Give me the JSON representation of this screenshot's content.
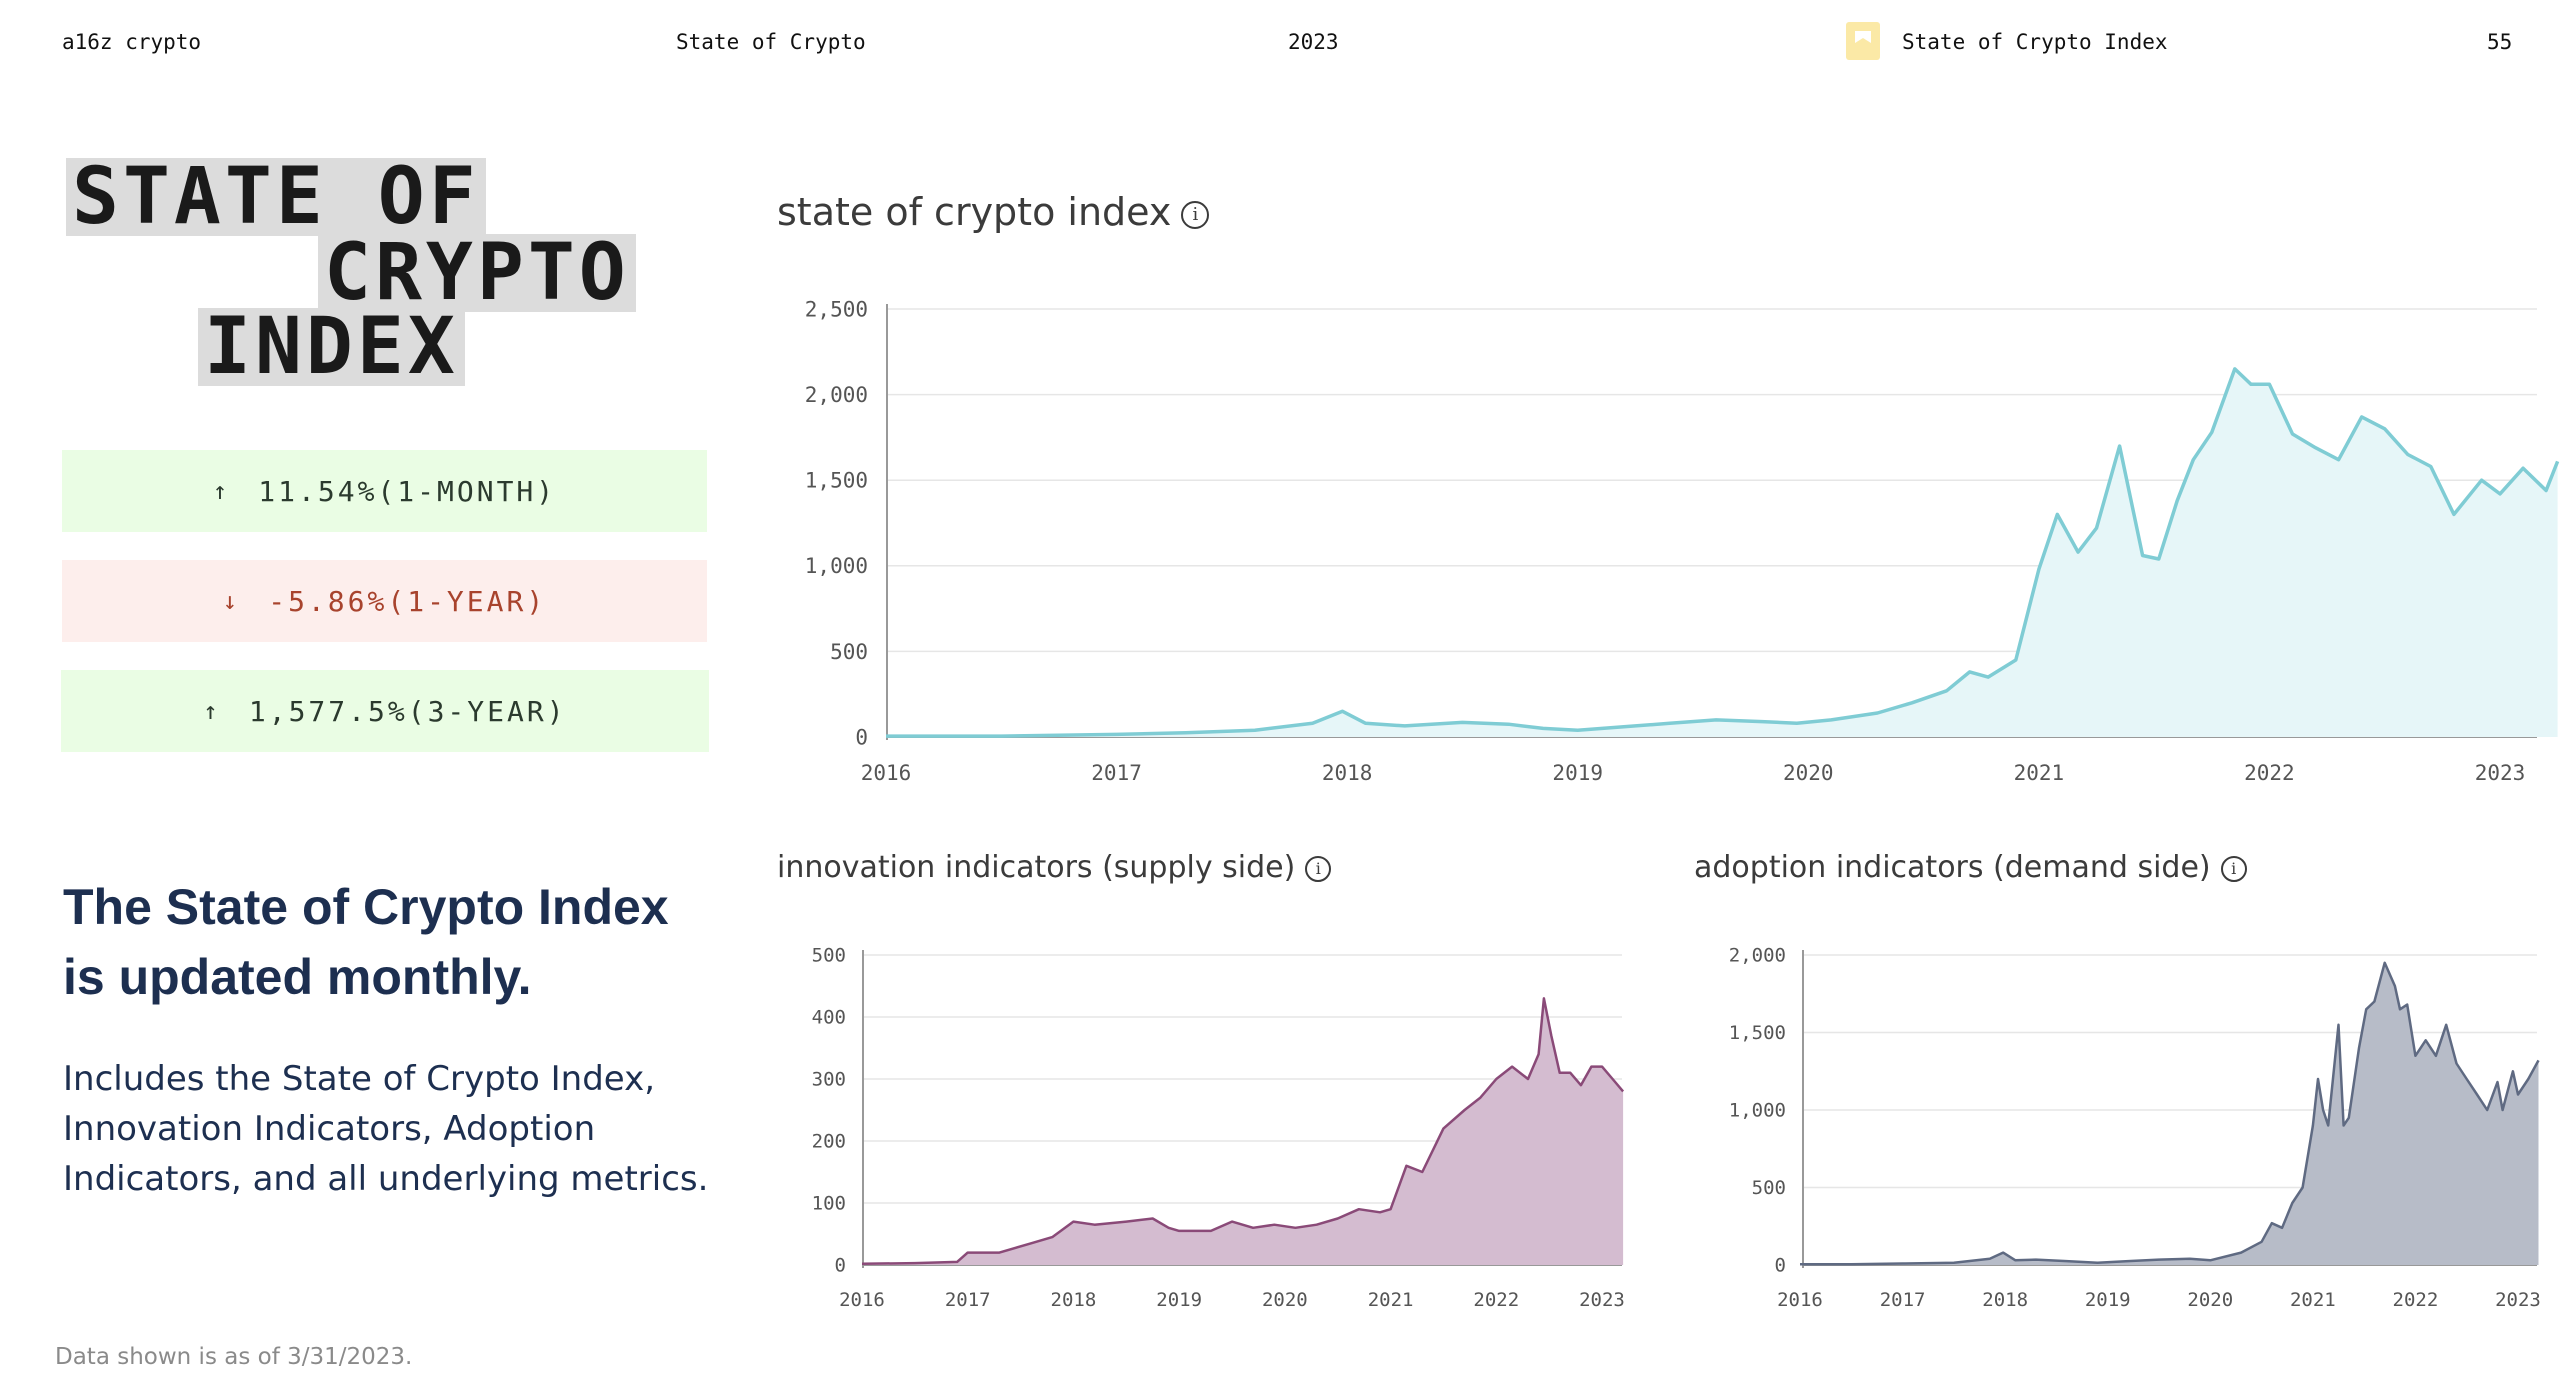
{
  "header": {
    "brand": "a16z crypto",
    "report": "State of Crypto",
    "year": "2023",
    "section": "State of Crypto Index",
    "page": "55"
  },
  "title": {
    "line1": "STATE OF",
    "line2": "CRYPTO",
    "line3": "INDEX"
  },
  "stats": [
    {
      "direction": "up",
      "value": "11.54%(1-MONTH)"
    },
    {
      "direction": "down",
      "value": "-5.86%(1-YEAR)"
    },
    {
      "direction": "up",
      "value": "1,577.5%(3-YEAR)"
    }
  ],
  "headline": "The State of Crypto Index is updated monthly.",
  "body": "Includes the State of Crypto Index, Innovation Indicators, Adoption Indicators, and all underlying metrics.",
  "footnote": "Data shown is as of 3/31/2023.",
  "colors": {
    "index_line": "#7fccd4",
    "index_fill": "#e6f6f8",
    "supply_line": "#8a4a78",
    "supply_fill": "#d4bcd0",
    "demand_line": "#5f6a82",
    "demand_fill": "#b7bcc8",
    "up_bg": "#eafde4",
    "down_bg": "#fdeeec",
    "down_text": "#a8432d"
  },
  "chart_data": [
    {
      "type": "area",
      "title": "state of crypto index",
      "ylim": [
        0,
        2500
      ],
      "yticks": [
        0,
        500,
        1000,
        1500,
        2000,
        2500
      ],
      "xticks": [
        "2016",
        "2017",
        "2018",
        "2019",
        "2020",
        "2021",
        "2022",
        "2023"
      ],
      "grid": true,
      "series": [
        {
          "x": [
            2016.0,
            2016.5,
            2017.0,
            2017.3,
            2017.6,
            2017.85,
            2017.98,
            2018.08,
            2018.25,
            2018.5,
            2018.7,
            2018.85,
            2019.0,
            2019.2,
            2019.4,
            2019.6,
            2019.8,
            2019.95,
            2020.1,
            2020.3,
            2020.45,
            2020.6,
            2020.7,
            2020.78,
            2020.9,
            2021.0,
            2021.08,
            2021.17,
            2021.25,
            2021.35,
            2021.45,
            2021.52,
            2021.6,
            2021.67,
            2021.75,
            2021.85,
            2021.92,
            2022.0,
            2022.1,
            2022.2,
            2022.3,
            2022.4,
            2022.5,
            2022.6,
            2022.7,
            2022.8,
            2022.92,
            2023.0,
            2023.1,
            2023.2,
            2023.25
          ],
          "y": [
            5,
            5,
            15,
            25,
            40,
            80,
            150,
            80,
            65,
            85,
            75,
            50,
            40,
            60,
            80,
            100,
            90,
            80,
            100,
            140,
            200,
            270,
            380,
            350,
            450,
            980,
            1300,
            1080,
            1220,
            1700,
            1060,
            1040,
            1380,
            1620,
            1780,
            2150,
            2060,
            2060,
            1770,
            1690,
            1620,
            1870,
            1800,
            1650,
            1580,
            1300,
            1500,
            1420,
            1570,
            1440,
            1610
          ]
        }
      ]
    },
    {
      "type": "area",
      "title": "innovation indicators (supply side)",
      "ylim": [
        0,
        500
      ],
      "yticks": [
        0,
        100,
        200,
        300,
        400,
        500
      ],
      "xticks": [
        "2016",
        "2017",
        "2018",
        "2019",
        "2020",
        "2021",
        "2022",
        "2023"
      ],
      "grid": true,
      "series": [
        {
          "x": [
            2016.0,
            2016.5,
            2016.9,
            2017.0,
            2017.3,
            2017.6,
            2017.8,
            2018.0,
            2018.2,
            2018.5,
            2018.75,
            2018.9,
            2019.0,
            2019.3,
            2019.5,
            2019.7,
            2019.9,
            2020.1,
            2020.3,
            2020.5,
            2020.7,
            2020.9,
            2021.0,
            2021.15,
            2021.3,
            2021.5,
            2021.7,
            2021.85,
            2022.0,
            2022.15,
            2022.3,
            2022.4,
            2022.45,
            2022.52,
            2022.6,
            2022.7,
            2022.8,
            2022.9,
            2023.0,
            2023.1,
            2023.2
          ],
          "y": [
            2,
            3,
            5,
            20,
            20,
            35,
            45,
            70,
            65,
            70,
            75,
            60,
            55,
            55,
            70,
            60,
            65,
            60,
            65,
            75,
            90,
            85,
            90,
            160,
            150,
            220,
            250,
            270,
            300,
            320,
            300,
            340,
            430,
            370,
            310,
            310,
            290,
            320,
            320,
            300,
            280
          ]
        }
      ]
    },
    {
      "type": "area",
      "title": "adoption indicators (demand side)",
      "ylim": [
        0,
        2000
      ],
      "yticks": [
        0,
        500,
        1000,
        1500,
        2000
      ],
      "xticks": [
        "2016",
        "2017",
        "2018",
        "2019",
        "2020",
        "2021",
        "2022",
        "2023"
      ],
      "grid": true,
      "series": [
        {
          "x": [
            2016.0,
            2016.5,
            2017.0,
            2017.5,
            2017.85,
            2017.98,
            2018.1,
            2018.3,
            2018.6,
            2018.9,
            2019.2,
            2019.5,
            2019.8,
            2020.0,
            2020.3,
            2020.5,
            2020.6,
            2020.7,
            2020.8,
            2020.9,
            2021.0,
            2021.05,
            2021.1,
            2021.15,
            2021.25,
            2021.3,
            2021.35,
            2021.45,
            2021.52,
            2021.6,
            2021.7,
            2021.8,
            2021.85,
            2021.92,
            2022.0,
            2022.1,
            2022.2,
            2022.3,
            2022.4,
            2022.5,
            2022.6,
            2022.7,
            2022.8,
            2022.85,
            2022.95,
            2023.0,
            2023.1,
            2023.2
          ],
          "y": [
            5,
            5,
            10,
            15,
            40,
            80,
            30,
            35,
            25,
            15,
            25,
            35,
            40,
            30,
            80,
            150,
            270,
            240,
            400,
            500,
            900,
            1200,
            1000,
            900,
            1550,
            900,
            950,
            1400,
            1650,
            1700,
            1950,
            1800,
            1650,
            1680,
            1350,
            1450,
            1350,
            1550,
            1300,
            1200,
            1100,
            1000,
            1180,
            1000,
            1250,
            1100,
            1200,
            1320
          ]
        }
      ]
    }
  ]
}
